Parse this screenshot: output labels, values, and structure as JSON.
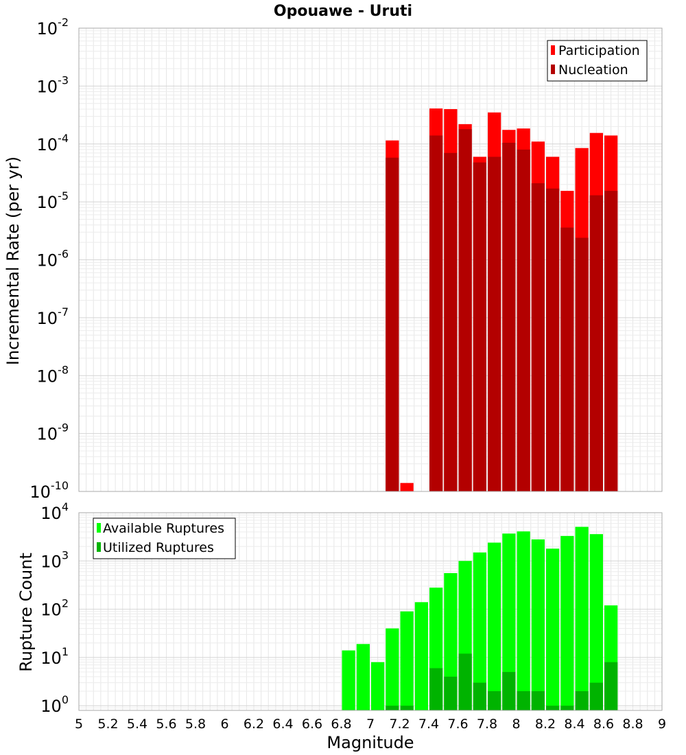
{
  "chart_data": [
    {
      "type": "bar",
      "title": "Opouawe - Uruti",
      "xlabel": "",
      "ylabel": "Incremental Rate (per yr)",
      "yscale": "log",
      "xlim": [
        5,
        9
      ],
      "ylim": [
        1e-10,
        0.01
      ],
      "grid": true,
      "legend_position": "top-right",
      "bin_width": 0.1,
      "x": [
        7.15,
        7.25,
        7.35,
        7.45,
        7.55,
        7.65,
        7.75,
        7.85,
        7.95,
        8.05,
        8.15,
        8.25,
        8.35,
        8.45,
        8.55,
        8.65
      ],
      "series": [
        {
          "name": "Participation",
          "color": "#ff0000",
          "values": [
            0.000115,
            1.4e-10,
            null,
            0.00041,
            0.0004,
            0.00022,
            6e-05,
            0.00035,
            0.000175,
            0.000185,
            0.00011,
            6e-05,
            1.55e-05,
            8.5e-05,
            0.000155,
            0.00014
          ]
        },
        {
          "name": "Nucleation",
          "color": "#b30000",
          "values": [
            5.8e-05,
            null,
            null,
            0.00014,
            7e-05,
            0.00018,
            4.8e-05,
            6e-05,
            0.000105,
            8e-05,
            2.1e-05,
            1.7e-05,
            3.6e-06,
            2.4e-06,
            1.3e-05,
            1.55e-05
          ]
        }
      ]
    },
    {
      "type": "bar",
      "title": "",
      "xlabel": "Magnitude",
      "ylabel": "Rupture Count",
      "yscale": "log",
      "xlim": [
        5,
        9
      ],
      "ylim": [
        0.8,
        10000
      ],
      "grid": true,
      "legend_position": "top-left",
      "bin_width": 0.1,
      "x": [
        6.85,
        6.95,
        7.05,
        7.15,
        7.25,
        7.35,
        7.45,
        7.55,
        7.65,
        7.75,
        7.85,
        7.95,
        8.05,
        8.15,
        8.25,
        8.35,
        8.45,
        8.55,
        8.65
      ],
      "series": [
        {
          "name": "Available Ruptures",
          "color": "#00ff00",
          "values": [
            14,
            19,
            8,
            40,
            90,
            140,
            280,
            560,
            1000,
            1500,
            2400,
            3700,
            4100,
            2800,
            1800,
            3300,
            5100,
            3600,
            120
          ]
        },
        {
          "name": "Utilized Ruptures",
          "color": "#00b300",
          "values": [
            null,
            null,
            null,
            1,
            1,
            null,
            6,
            4,
            12,
            3,
            2,
            5,
            2,
            2,
            1,
            1,
            2,
            3,
            8
          ]
        }
      ]
    }
  ],
  "x_ticks": [
    "5",
    "5.2",
    "5.4",
    "5.6",
    "5.8",
    "6",
    "6.2",
    "6.4",
    "6.6",
    "6.8",
    "7",
    "7.2",
    "7.4",
    "7.6",
    "7.8",
    "8",
    "8.2",
    "8.4",
    "8.6",
    "8.8",
    "9"
  ],
  "top_y_ticks": [
    {
      "base": "10",
      "exp": "-2"
    },
    {
      "base": "10",
      "exp": "-3"
    },
    {
      "base": "10",
      "exp": "-4"
    },
    {
      "base": "10",
      "exp": "-5"
    },
    {
      "base": "10",
      "exp": "-6"
    },
    {
      "base": "10",
      "exp": "-7"
    },
    {
      "base": "10",
      "exp": "-8"
    },
    {
      "base": "10",
      "exp": "-9"
    },
    {
      "base": "10",
      "exp": "-10"
    }
  ],
  "bottom_y_ticks": [
    {
      "base": "10",
      "exp": "4"
    },
    {
      "base": "10",
      "exp": "3"
    },
    {
      "base": "10",
      "exp": "2"
    },
    {
      "base": "10",
      "exp": "1"
    },
    {
      "base": "10",
      "exp": "0"
    }
  ]
}
